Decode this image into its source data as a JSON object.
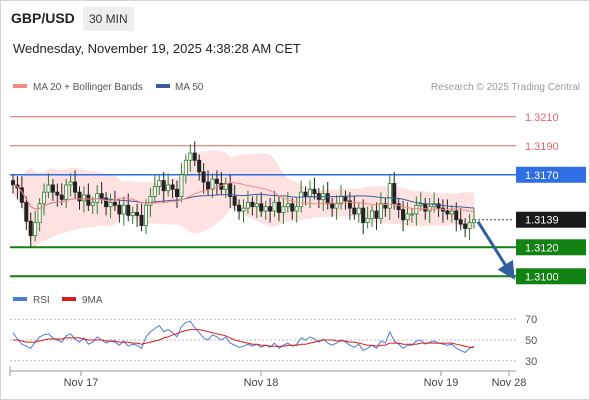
{
  "header": {
    "symbol": "GBP/USD",
    "timeframe": "30 MIN",
    "datetime": "Wednesday, November 19, 2025 4:38:28 AM CET"
  },
  "chart_data": [
    {
      "type": "candlestick",
      "title": "",
      "source_label": "Research © 2025 Trading Central",
      "legend": [
        {
          "label": "MA 20 + Bollinger Bands",
          "color": "#f28b82"
        },
        {
          "label": "MA 50",
          "color": "#3d5b9c"
        }
      ],
      "x_tick_labels": [
        "Nov 17",
        "Nov 18",
        "Nov 19",
        "Nov 28"
      ],
      "ylim": [
        1.3094,
        1.3225
      ],
      "levels": [
        {
          "label": "1.3210",
          "value": 1.321,
          "color": "#e06666",
          "kind": "resistance"
        },
        {
          "label": "1.3190",
          "value": 1.319,
          "color": "#e06666",
          "kind": "resistance"
        },
        {
          "label": "1.3170",
          "value": 1.317,
          "color": "#2f6fe4",
          "kind": "pivot"
        },
        {
          "label": "1.3139",
          "value": 1.3139,
          "color": "#333333",
          "kind": "last_price"
        },
        {
          "label": "1.3120",
          "value": 1.312,
          "color": "#128212",
          "kind": "support"
        },
        {
          "label": "1.3100",
          "value": 1.31,
          "color": "#128212",
          "kind": "support"
        }
      ],
      "price_series": [
        1.3163,
        1.3161,
        1.3151,
        1.3138,
        1.3128,
        1.3137,
        1.315,
        1.3158,
        1.3163,
        1.3158,
        1.3156,
        1.3153,
        1.3163,
        1.3165,
        1.3158,
        1.3152,
        1.3156,
        1.3149,
        1.3151,
        1.3157,
        1.3154,
        1.3148,
        1.3151,
        1.3149,
        1.3143,
        1.3149,
        1.3142,
        1.3144,
        1.3142,
        1.3135,
        1.3149,
        1.3155,
        1.3162,
        1.3166,
        1.3159,
        1.3163,
        1.316,
        1.3155,
        1.317,
        1.318,
        1.3185,
        1.318,
        1.3172,
        1.3165,
        1.316,
        1.3167,
        1.3164,
        1.316,
        1.3164,
        1.3155,
        1.3149,
        1.3145,
        1.3147,
        1.3151,
        1.3148,
        1.315,
        1.3145,
        1.3148,
        1.3145,
        1.3151,
        1.3144,
        1.3148,
        1.315,
        1.3145,
        1.3148,
        1.3158,
        1.3155,
        1.316,
        1.3157,
        1.3153,
        1.3157,
        1.315,
        1.3147,
        1.315,
        1.3155,
        1.3152,
        1.3147,
        1.3143,
        1.3147,
        1.3137,
        1.314,
        1.3145,
        1.314,
        1.315,
        1.3147,
        1.3164,
        1.315,
        1.3146,
        1.3139,
        1.3143,
        1.3143,
        1.3149,
        1.315,
        1.3145,
        1.3148,
        1.315,
        1.3147,
        1.3145,
        1.3143,
        1.3145,
        1.3139,
        1.3136,
        1.3133,
        1.3137,
        1.3139
      ],
      "forecast": {
        "from": 1.3139,
        "to": 1.31
      },
      "rsi_panel": {
        "legend": [
          {
            "label": "RSI",
            "color": "#4a7bd6"
          },
          {
            "label": "9MA",
            "color": "#d81b1b"
          }
        ],
        "y_tick_labels": [
          "70",
          "50",
          "30"
        ],
        "ylim": [
          25,
          75
        ],
        "rsi": [
          57,
          51,
          46,
          44,
          42,
          48,
          53,
          55,
          56,
          52,
          50,
          48,
          54,
          56,
          51,
          48,
          52,
          46,
          48,
          53,
          50,
          47,
          49,
          48,
          45,
          49,
          44,
          46,
          45,
          42,
          53,
          58,
          61,
          64,
          58,
          60,
          57,
          53,
          63,
          67,
          68,
          62,
          57,
          52,
          50,
          55,
          53,
          50,
          53,
          47,
          45,
          43,
          44,
          46,
          44,
          46,
          43,
          45,
          43,
          47,
          42,
          45,
          47,
          44,
          46,
          52,
          50,
          53,
          51,
          48,
          51,
          47,
          45,
          47,
          50,
          48,
          45,
          43,
          46,
          40,
          42,
          45,
          42,
          49,
          47,
          58,
          49,
          46,
          42,
          45,
          45,
          49,
          50,
          46,
          48,
          49,
          47,
          46,
          45,
          46,
          42,
          40,
          38,
          42,
          44
        ],
        "ma9": [
          50,
          50,
          49,
          48,
          48,
          48,
          49,
          50,
          51,
          51,
          51,
          51,
          52,
          52,
          52,
          52,
          51,
          50,
          50,
          50,
          50,
          49,
          49,
          49,
          48,
          48,
          48,
          47,
          47,
          46,
          47,
          48,
          49,
          50,
          52,
          53,
          55,
          56,
          58,
          59,
          60,
          60,
          60,
          59,
          58,
          57,
          56,
          55,
          54,
          52,
          50,
          49,
          48,
          47,
          46,
          46,
          45,
          45,
          44,
          44,
          44,
          44,
          45,
          45,
          45,
          46,
          46,
          47,
          48,
          49,
          50,
          50,
          50,
          49,
          49,
          49,
          48,
          48,
          47,
          46,
          45,
          45,
          44,
          45,
          45,
          47,
          47,
          47,
          46,
          46,
          46,
          46,
          47,
          47,
          47,
          47,
          47,
          47,
          47,
          47,
          46,
          45,
          44,
          43,
          43
        ]
      }
    }
  ]
}
